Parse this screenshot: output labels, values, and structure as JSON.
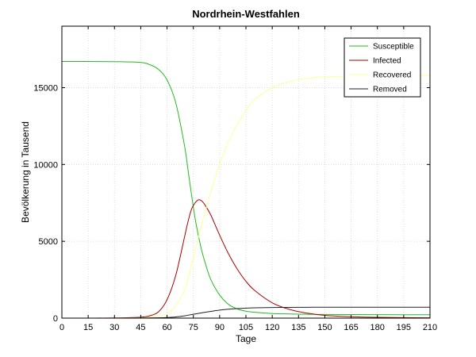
{
  "chart_data": {
    "type": "line",
    "title": "Nordrhein-Westfahlen",
    "xlabel": "Tage",
    "ylabel": "Bevölkerung in Tausend",
    "xlim": [
      0,
      210
    ],
    "ylim": [
      0,
      19000
    ],
    "xticks": [
      0,
      15,
      30,
      45,
      60,
      75,
      90,
      105,
      120,
      135,
      150,
      165,
      180,
      195,
      210
    ],
    "yticks": [
      0,
      5000,
      10000,
      15000
    ],
    "ytick_labels": [
      "0",
      "5000",
      "10000",
      "15000"
    ],
    "grid": true,
    "legend_position": "top-right",
    "x": [
      0,
      15,
      30,
      45,
      50,
      55,
      60,
      65,
      70,
      72,
      74,
      76,
      78,
      80,
      82,
      85,
      90,
      95,
      100,
      105,
      110,
      120,
      130,
      140,
      150,
      165,
      180,
      195,
      210
    ],
    "series": [
      {
        "name": "Susceptible",
        "color": "#22bb22",
        "values": [
          16700,
          16700,
          16690,
          16640,
          16500,
          16200,
          15500,
          14000,
          11200,
          9600,
          8000,
          6500,
          5300,
          4300,
          3500,
          2500,
          1500,
          900,
          600,
          450,
          380,
          300,
          270,
          250,
          240,
          230,
          225,
          220,
          220
        ]
      },
      {
        "name": "Infected",
        "color": "#aa0000",
        "values": [
          0,
          2,
          10,
          60,
          150,
          400,
          1200,
          2800,
          5300,
          6300,
          7100,
          7500,
          7700,
          7600,
          7300,
          6700,
          5400,
          4200,
          3200,
          2400,
          1800,
          1000,
          560,
          320,
          180,
          90,
          50,
          30,
          20
        ]
      },
      {
        "name": "Recovered",
        "color": "#ffff99",
        "values": [
          0,
          0,
          5,
          20,
          60,
          150,
          300,
          800,
          1800,
          2600,
          3500,
          4400,
          5300,
          6200,
          7000,
          8200,
          10000,
          11500,
          12600,
          13500,
          14200,
          15000,
          15400,
          15600,
          15700,
          15750,
          15800,
          15800,
          15800
        ]
      },
      {
        "name": "Removed",
        "color": "#222222",
        "values": [
          0,
          0,
          0,
          5,
          10,
          20,
          40,
          80,
          150,
          190,
          230,
          270,
          310,
          350,
          390,
          440,
          520,
          580,
          620,
          650,
          670,
          690,
          700,
          705,
          710,
          710,
          710,
          710,
          710
        ]
      }
    ]
  }
}
